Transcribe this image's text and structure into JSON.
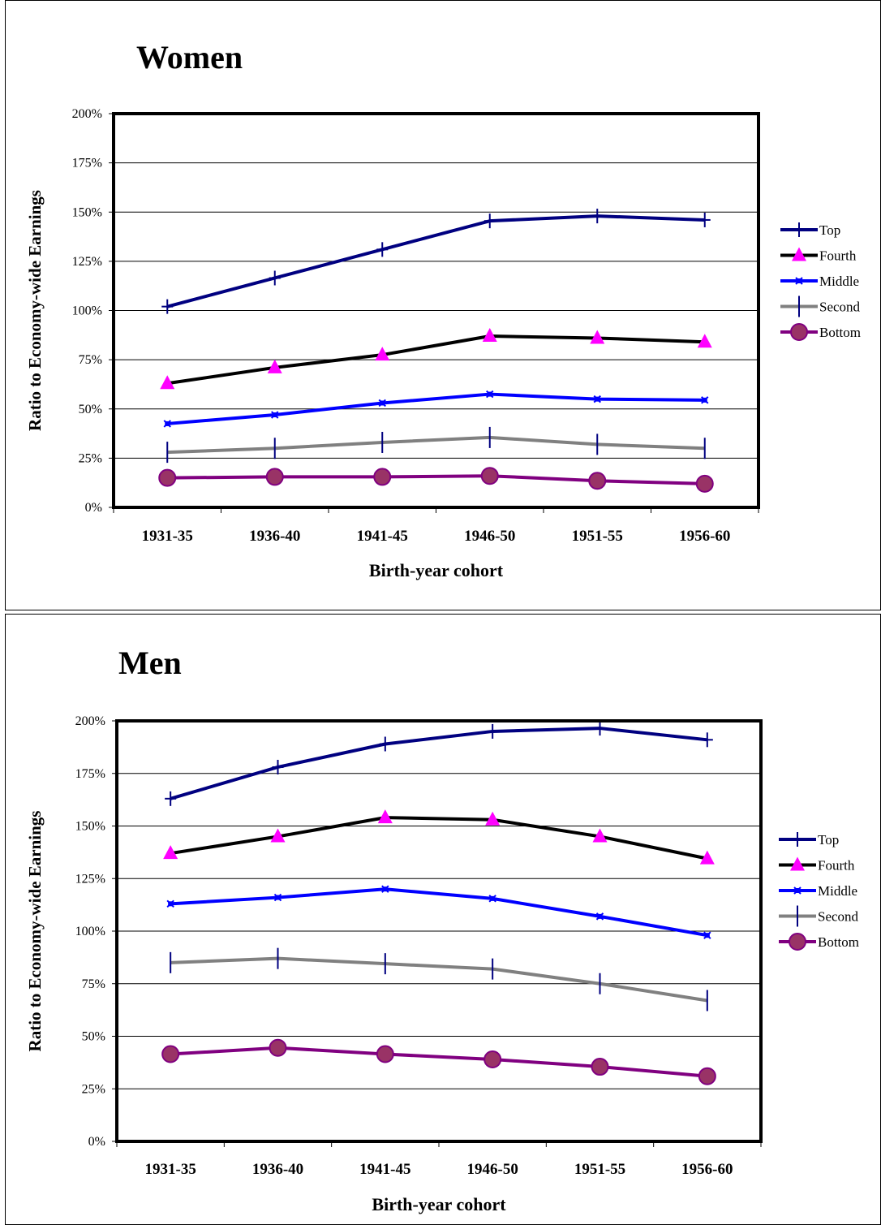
{
  "chart_data": [
    {
      "type": "line",
      "title": "Women",
      "xlabel": "Birth-year cohort",
      "ylabel": "Ratio to Economy-wide Earnings",
      "ylim": [
        0,
        200
      ],
      "yticks": [
        "0%",
        "25%",
        "50%",
        "75%",
        "100%",
        "125%",
        "150%",
        "175%",
        "200%"
      ],
      "grid": true,
      "legend_position": "right",
      "categories": [
        "1931-35",
        "1936-40",
        "1941-45",
        "1946-50",
        "1951-55",
        "1956-60"
      ],
      "series": [
        {
          "name": "Top",
          "color": "#000080",
          "marker": "plus",
          "values": [
            102,
            116.5,
            131,
            145.5,
            148,
            146
          ]
        },
        {
          "name": "Fourth",
          "color": "#000000",
          "marker": "triangle",
          "marker_color": "#ff00ff",
          "values": [
            63,
            71,
            77.5,
            87,
            86,
            84
          ]
        },
        {
          "name": "Middle",
          "color": "#0000ff",
          "marker": "star",
          "values": [
            42.5,
            47,
            53,
            57.5,
            55,
            54.5
          ]
        },
        {
          "name": "Second",
          "color": "#808080",
          "marker": "vbar",
          "marker_color": "#000080",
          "values": [
            28,
            30,
            33,
            35.5,
            32,
            30
          ]
        },
        {
          "name": "Bottom",
          "color": "#800080",
          "marker": "circle",
          "marker_color": "#993366",
          "values": [
            15,
            15.5,
            15.5,
            16,
            13.5,
            12
          ]
        }
      ]
    },
    {
      "type": "line",
      "title": "Men",
      "xlabel": "Birth-year cohort",
      "ylabel": "Ratio to Economy-wide Earnings",
      "ylim": [
        0,
        200
      ],
      "yticks": [
        "0%",
        "25%",
        "50%",
        "75%",
        "100%",
        "125%",
        "150%",
        "175%",
        "200%"
      ],
      "grid": true,
      "legend_position": "right",
      "categories": [
        "1931-35",
        "1936-40",
        "1941-45",
        "1946-50",
        "1951-55",
        "1956-60"
      ],
      "series": [
        {
          "name": "Top",
          "color": "#000080",
          "marker": "plus",
          "values": [
            163,
            178,
            189,
            195,
            196.5,
            191
          ]
        },
        {
          "name": "Fourth",
          "color": "#000000",
          "marker": "triangle",
          "marker_color": "#ff00ff",
          "values": [
            137,
            145,
            154,
            153,
            145,
            134.5
          ]
        },
        {
          "name": "Middle",
          "color": "#0000ff",
          "marker": "star",
          "values": [
            113,
            116,
            120,
            115.5,
            107,
            98
          ]
        },
        {
          "name": "Second",
          "color": "#808080",
          "marker": "vbar",
          "marker_color": "#000080",
          "values": [
            85,
            87,
            84.5,
            82,
            75,
            67
          ]
        },
        {
          "name": "Bottom",
          "color": "#800080",
          "marker": "circle",
          "marker_color": "#993366",
          "values": [
            41.5,
            44.5,
            41.5,
            39,
            35.5,
            31
          ]
        }
      ]
    }
  ]
}
